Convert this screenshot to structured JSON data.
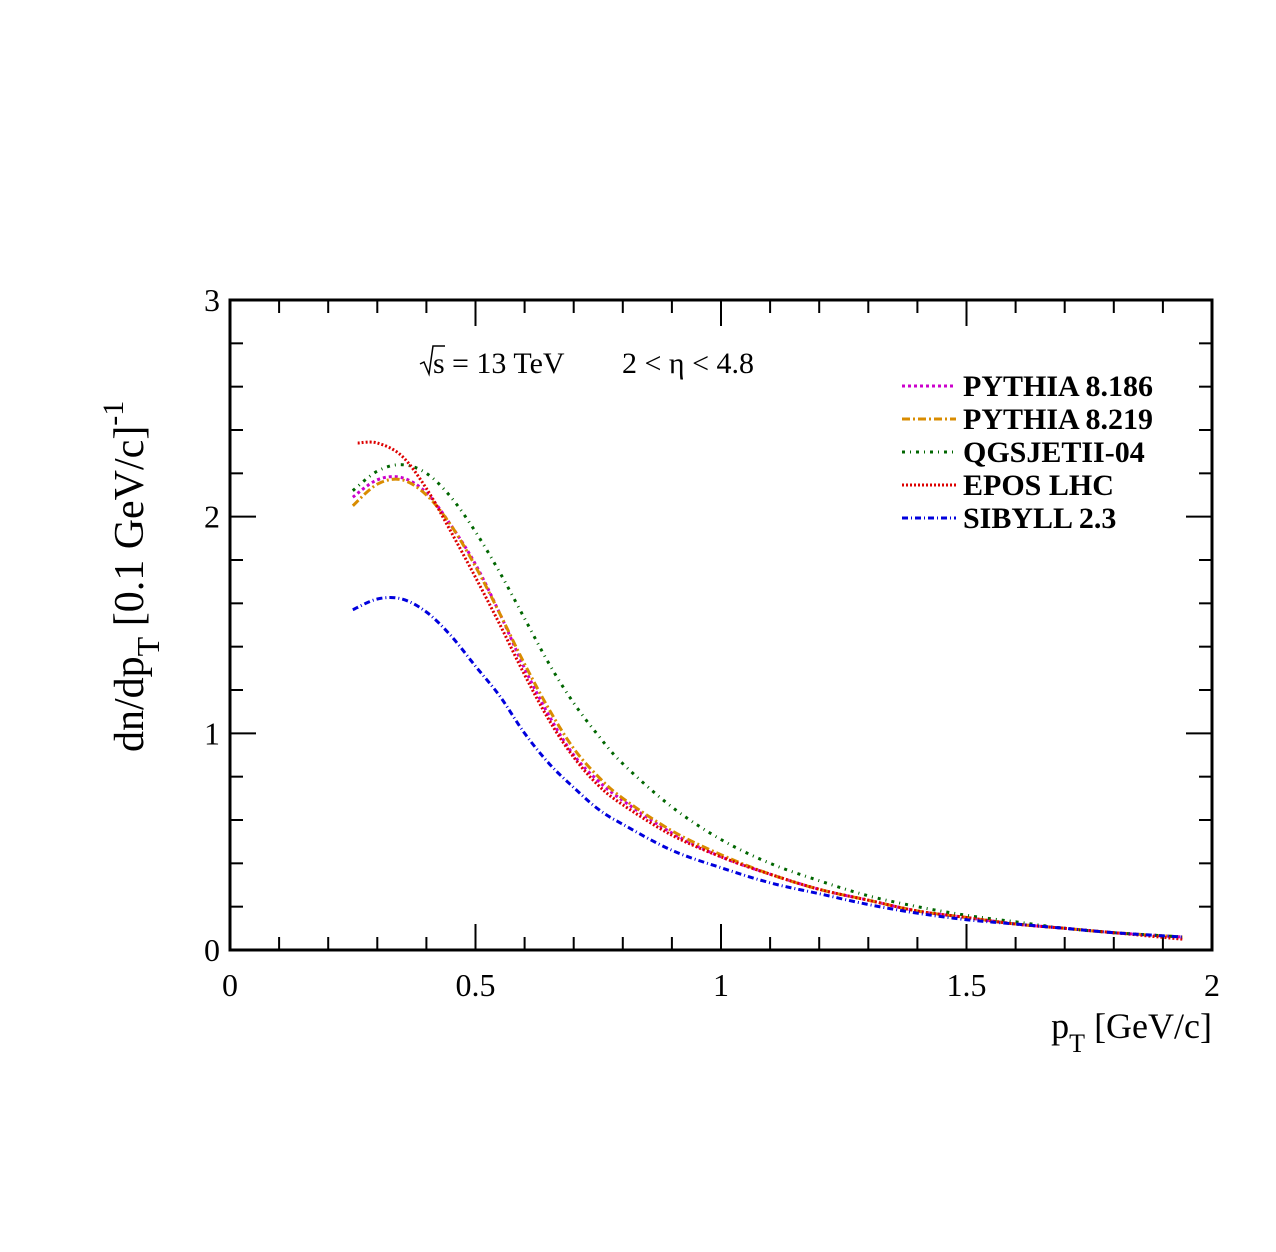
{
  "chart_data": {
    "type": "line",
    "annotation": {
      "sqrt_label": "s",
      "energy": "= 13 TeV",
      "eta_range": "2 < η < 4.8"
    },
    "xlabel": {
      "main": "p",
      "sub": "T",
      "rest": " [GeV/c]"
    },
    "ylabel": {
      "pre": "dn/dp",
      "sub": "T",
      "mid": " [0.1 GeV/c]",
      "sup": "-1"
    },
    "xlim": [
      0,
      2
    ],
    "ylim": [
      0,
      3
    ],
    "xticks": [
      {
        "value": 0,
        "label": "0"
      },
      {
        "value": 0.5,
        "label": "0.5"
      },
      {
        "value": 1,
        "label": "1"
      },
      {
        "value": 1.5,
        "label": "1.5"
      },
      {
        "value": 2,
        "label": "2"
      }
    ],
    "yticks": [
      {
        "value": 0,
        "label": "0"
      },
      {
        "value": 1,
        "label": "1"
      },
      {
        "value": 2,
        "label": "2"
      },
      {
        "value": 3,
        "label": "3"
      }
    ],
    "grid": false,
    "legend_position": "top-right",
    "series": [
      {
        "name": "PYTHIA 8.186",
        "color": "#cc00cc",
        "dash": "3,3",
        "x": [
          0.25,
          0.3,
          0.35,
          0.4,
          0.45,
          0.5,
          0.55,
          0.6,
          0.65,
          0.7,
          0.75,
          0.8,
          0.9,
          1.0,
          1.1,
          1.2,
          1.3,
          1.4,
          1.5,
          1.6,
          1.7,
          1.8,
          1.94
        ],
        "y": [
          2.09,
          2.17,
          2.18,
          2.11,
          1.96,
          1.78,
          1.55,
          1.3,
          1.08,
          0.9,
          0.78,
          0.69,
          0.54,
          0.43,
          0.35,
          0.28,
          0.23,
          0.18,
          0.15,
          0.12,
          0.1,
          0.08,
          0.06
        ]
      },
      {
        "name": "PYTHIA 8.219",
        "color": "#d98c00",
        "dash": "8,3,2,3",
        "x": [
          0.25,
          0.3,
          0.35,
          0.4,
          0.45,
          0.5,
          0.55,
          0.6,
          0.65,
          0.7,
          0.75,
          0.8,
          0.9,
          1.0,
          1.1,
          1.2,
          1.3,
          1.4,
          1.5,
          1.6,
          1.7,
          1.8,
          1.94
        ],
        "y": [
          2.05,
          2.15,
          2.17,
          2.1,
          1.96,
          1.77,
          1.55,
          1.32,
          1.11,
          0.93,
          0.8,
          0.7,
          0.55,
          0.44,
          0.35,
          0.28,
          0.23,
          0.18,
          0.15,
          0.12,
          0.1,
          0.08,
          0.06
        ]
      },
      {
        "name": "QGSJETII-04",
        "color": "#006600",
        "dash": "3,5,1,5",
        "x": [
          0.25,
          0.3,
          0.35,
          0.4,
          0.45,
          0.5,
          0.55,
          0.6,
          0.65,
          0.7,
          0.75,
          0.8,
          0.9,
          1.0,
          1.1,
          1.2,
          1.3,
          1.4,
          1.5,
          1.6,
          1.7,
          1.8,
          1.94
        ],
        "y": [
          2.12,
          2.21,
          2.24,
          2.2,
          2.09,
          1.93,
          1.74,
          1.53,
          1.32,
          1.14,
          0.99,
          0.86,
          0.66,
          0.51,
          0.4,
          0.32,
          0.25,
          0.2,
          0.16,
          0.13,
          0.1,
          0.08,
          0.06
        ]
      },
      {
        "name": "EPOS LHC",
        "color": "#dd0000",
        "dash": "2,2",
        "x": [
          0.26,
          0.3,
          0.35,
          0.4,
          0.45,
          0.5,
          0.55,
          0.6,
          0.65,
          0.7,
          0.75,
          0.8,
          0.9,
          1.0,
          1.1,
          1.2,
          1.3,
          1.4,
          1.5,
          1.6,
          1.7,
          1.8,
          1.94
        ],
        "y": [
          2.34,
          2.34,
          2.28,
          2.13,
          1.93,
          1.72,
          1.5,
          1.27,
          1.06,
          0.89,
          0.76,
          0.67,
          0.53,
          0.43,
          0.35,
          0.28,
          0.23,
          0.18,
          0.15,
          0.12,
          0.1,
          0.08,
          0.05
        ]
      },
      {
        "name": "SIBYLL 2.3",
        "color": "#0000dd",
        "dash": "6,3,1,3",
        "x": [
          0.25,
          0.3,
          0.35,
          0.4,
          0.45,
          0.5,
          0.55,
          0.6,
          0.65,
          0.7,
          0.75,
          0.8,
          0.9,
          1.0,
          1.1,
          1.2,
          1.3,
          1.4,
          1.5,
          1.6,
          1.7,
          1.8,
          1.94
        ],
        "y": [
          1.57,
          1.62,
          1.62,
          1.56,
          1.45,
          1.31,
          1.17,
          1.0,
          0.86,
          0.75,
          0.65,
          0.58,
          0.46,
          0.38,
          0.31,
          0.26,
          0.21,
          0.17,
          0.14,
          0.12,
          0.1,
          0.08,
          0.06
        ]
      }
    ]
  }
}
